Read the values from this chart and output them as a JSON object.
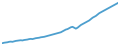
{
  "line_color": "#4d9fce",
  "background_color": "#ffffff",
  "linewidth": 1.3,
  "values": [
    2,
    3,
    3.5,
    4,
    5,
    5.5,
    5,
    6,
    7,
    7.5,
    8,
    8.5,
    8,
    9,
    9.5,
    10,
    11,
    11.5,
    11,
    12,
    13,
    13.5,
    14,
    15,
    15.5,
    16,
    17,
    18,
    19,
    20,
    21,
    22,
    23,
    24,
    25,
    26,
    28,
    30,
    32,
    33,
    35,
    37,
    38,
    36,
    34,
    36,
    39,
    42,
    44,
    46,
    48,
    50,
    52,
    55,
    58,
    60,
    62,
    65,
    68,
    70,
    72,
    74,
    76,
    78,
    80,
    82,
    84,
    86,
    88,
    90
  ],
  "ylim_min": 0,
  "ylim_max": 95
}
